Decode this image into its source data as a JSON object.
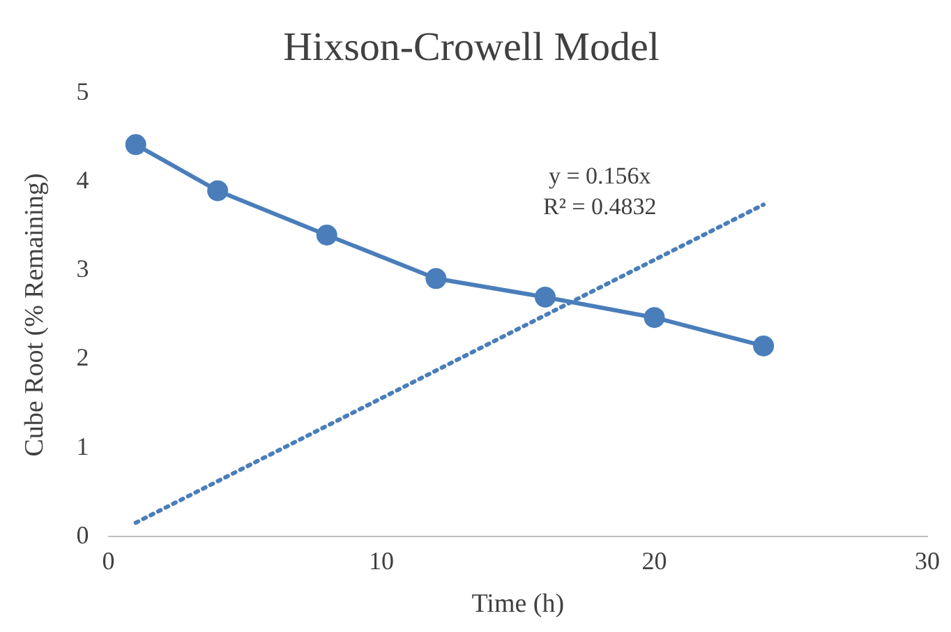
{
  "chart_data": {
    "type": "line",
    "title": "Hixson-Crowell Model",
    "xlabel": "Time (h)",
    "ylabel": "Cube Root (% Remaining)",
    "x": [
      1,
      4,
      8,
      12,
      16,
      20,
      24
    ],
    "series": [
      {
        "color": "#4a7ebb",
        "values": [
          4.42,
          3.9,
          3.4,
          2.91,
          2.7,
          2.47,
          2.15
        ],
        "marker": "circle",
        "line_style": "solid"
      },
      {
        "type": "line",
        "color": "#4a7ebb",
        "x": [
          1,
          24
        ],
        "values": [
          0.156,
          3.744
        ],
        "marker": "none",
        "line_style": "dotted"
      }
    ],
    "annotations": [
      "y = 0.156x",
      "R² = 0.4832"
    ],
    "xlim": [
      0,
      30
    ],
    "xticks": [
      0,
      10,
      20,
      30
    ],
    "ylim": [
      0,
      5
    ],
    "yticks": [
      0,
      1,
      2,
      3,
      4,
      5
    ],
    "grid": false,
    "legend": false
  }
}
